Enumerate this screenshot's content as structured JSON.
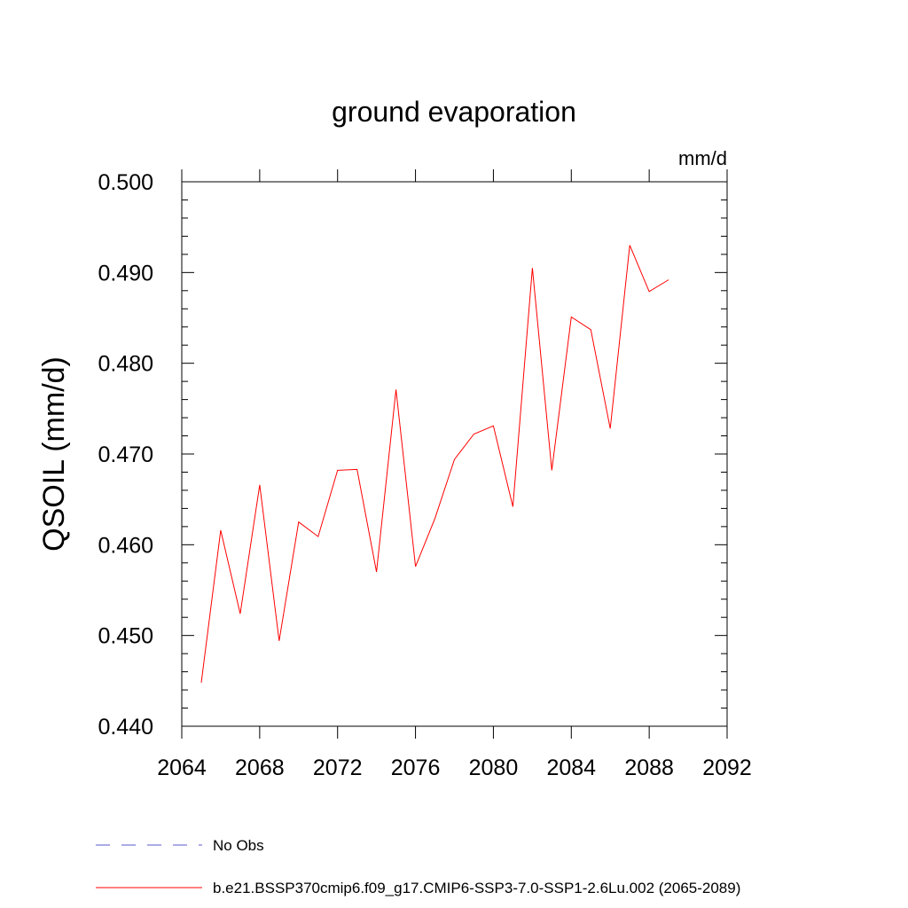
{
  "chart_data": {
    "type": "line",
    "title": "ground evaporation",
    "units": "mm/d",
    "ylabel": "QSOIL  (mm/d)",
    "xlabel": "",
    "xlim": [
      2064,
      2092
    ],
    "ylim": [
      0.44,
      0.5
    ],
    "x_ticks": [
      "2064",
      "2068",
      "2072",
      "2076",
      "2080",
      "2084",
      "2088",
      "2092"
    ],
    "y_ticks": [
      "0.440",
      "0.450",
      "0.460",
      "0.470",
      "0.480",
      "0.490",
      "0.500"
    ],
    "grid": false,
    "legend_position": "bottom",
    "series": [
      {
        "name": "b.e21.BSSP370cmip6.f09_g17.CMIP6-SSP3-7.0-SSP1-2.6Lu.002 (2065-2089)",
        "color": "#ff0000",
        "x": [
          2065,
          2066,
          2067,
          2068,
          2069,
          2070,
          2071,
          2072,
          2073,
          2074,
          2075,
          2076,
          2077,
          2078,
          2079,
          2080,
          2081,
          2082,
          2083,
          2084,
          2085,
          2086,
          2087,
          2088,
          2089
        ],
        "y": [
          0.4448,
          0.4616,
          0.4524,
          0.4666,
          0.4494,
          0.4625,
          0.4609,
          0.4682,
          0.4683,
          0.457,
          0.4771,
          0.4576,
          0.4629,
          0.4694,
          0.4722,
          0.4731,
          0.4642,
          0.4905,
          0.4682,
          0.4851,
          0.4837,
          0.4728,
          0.493,
          0.4879,
          0.4892
        ]
      }
    ],
    "legend": [
      {
        "label": "No Obs",
        "color": "#5a5acd",
        "style": "dashed"
      },
      {
        "label": "b.e21.BSSP370cmip6.f09_g17.CMIP6-SSP3-7.0-SSP1-2.6Lu.002 (2065-2089)",
        "color": "#ff0000",
        "style": "solid"
      }
    ]
  }
}
